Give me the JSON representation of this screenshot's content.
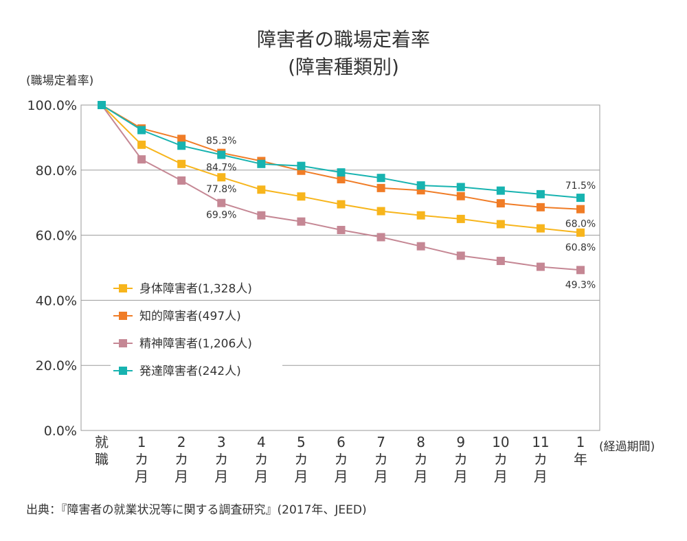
{
  "chart_data": {
    "type": "line",
    "title": "障害者の職場定着率",
    "subtitle": "(障害種類別)",
    "ylabel": "(職場定着率)",
    "xunit": "(経過期間)",
    "ylim": [
      0,
      100
    ],
    "yticks": [
      "0.0%",
      "20.0%",
      "40.0%",
      "60.0%",
      "80.0%",
      "100.0%"
    ],
    "categories": [
      [
        "就",
        "職"
      ],
      [
        "1",
        "カ",
        "月"
      ],
      [
        "2",
        "カ",
        "月"
      ],
      [
        "3",
        "カ",
        "月"
      ],
      [
        "4",
        "カ",
        "月"
      ],
      [
        "5",
        "カ",
        "月"
      ],
      [
        "6",
        "カ",
        "月"
      ],
      [
        "7",
        "カ",
        "月"
      ],
      [
        "8",
        "カ",
        "月"
      ],
      [
        "9",
        "カ",
        "月"
      ],
      [
        "10",
        "カ",
        "月"
      ],
      [
        "11",
        "カ",
        "月"
      ],
      [
        "1",
        "年"
      ]
    ],
    "grid": true,
    "legend_position": "center-left",
    "series": [
      {
        "name": "身体障害者(1,328人)",
        "color": "#f7b51c",
        "values": [
          100,
          87.8,
          81.9,
          77.8,
          74.0,
          71.9,
          69.5,
          67.4,
          66.1,
          65.0,
          63.4,
          62.1,
          60.8
        ]
      },
      {
        "name": "知的障害者(497人)",
        "color": "#f07c26",
        "values": [
          100,
          92.8,
          89.6,
          85.3,
          82.8,
          79.8,
          77.2,
          74.5,
          73.8,
          72.0,
          69.8,
          68.6,
          68.0
        ]
      },
      {
        "name": "精神障害者(1,206人)",
        "color": "#c58794",
        "values": [
          100,
          83.3,
          76.8,
          69.9,
          66.1,
          64.2,
          61.6,
          59.4,
          56.6,
          53.7,
          52.1,
          50.3,
          49.3
        ]
      },
      {
        "name": "発達障害者(242人)",
        "color": "#17b3b0",
        "values": [
          100,
          92.3,
          87.5,
          84.7,
          81.9,
          81.3,
          79.3,
          77.6,
          75.3,
          74.8,
          73.7,
          72.6,
          71.5
        ]
      }
    ],
    "data_labels": [
      {
        "series": 1,
        "index": 3,
        "text": "85.3%"
      },
      {
        "series": 3,
        "index": 3,
        "text": "84.7%"
      },
      {
        "series": 0,
        "index": 3,
        "text": "77.8%"
      },
      {
        "series": 2,
        "index": 3,
        "text": "69.9%"
      },
      {
        "series": 3,
        "index": 12,
        "text": "71.5%"
      },
      {
        "series": 1,
        "index": 12,
        "text": "68.0%"
      },
      {
        "series": 0,
        "index": 12,
        "text": "60.8%"
      },
      {
        "series": 2,
        "index": 12,
        "text": "49.3%"
      }
    ]
  },
  "source": "出典：『障害者の就業状況等に関する調査研究』(2017年、JEED)"
}
